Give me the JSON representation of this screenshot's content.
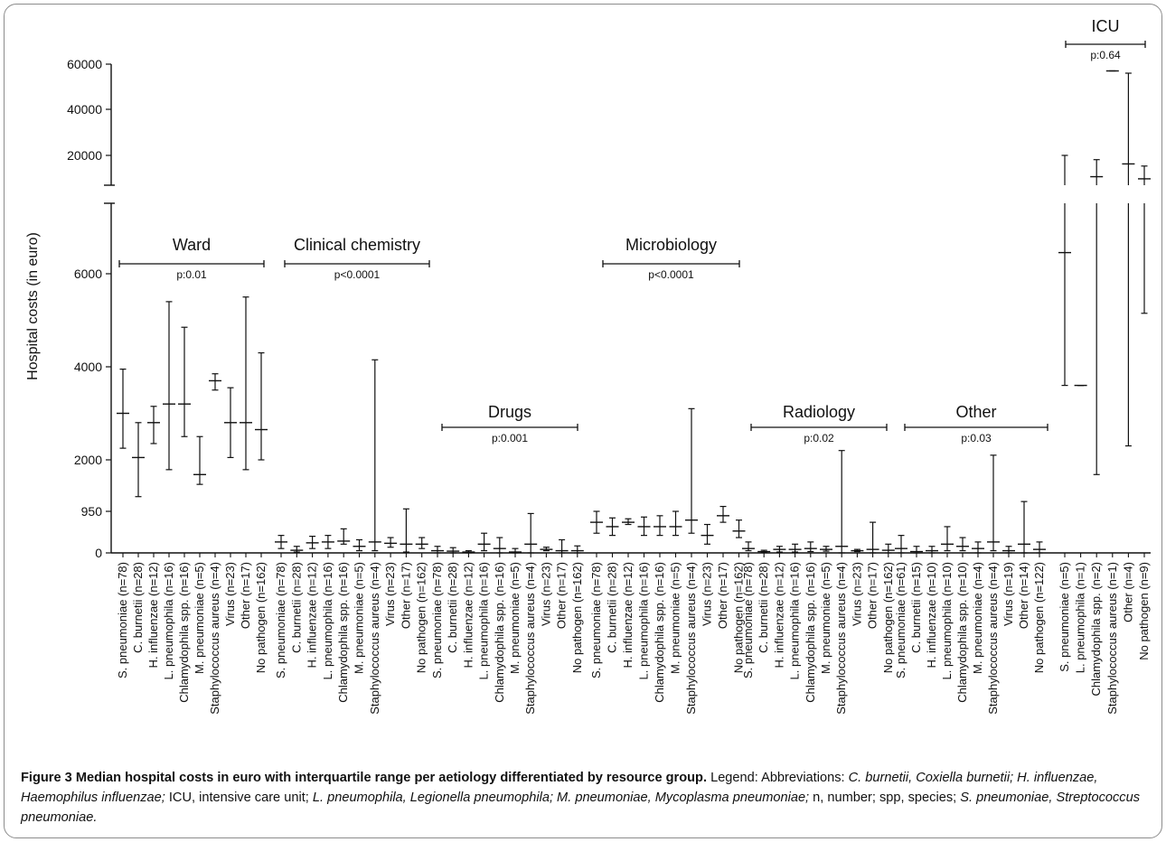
{
  "chart_data": {
    "type": "box",
    "ylabel": "Hospital costs (in euro)",
    "y_tick_labels": [
      "0",
      "950",
      "2000",
      "4000",
      "6000",
      "20000",
      "40000",
      "60000"
    ],
    "groups": [
      {
        "name": "Ward",
        "p_value": "p:0.01",
        "items": [
          {
            "label": "S. pneumoniae (n=78)",
            "median": 3000,
            "q1": 2250,
            "q3": 3950
          },
          {
            "label": "C. burnetii (n=28)",
            "median": 2050,
            "q1": 1250,
            "q3": 2800
          },
          {
            "label": "H. influenzae (n=12)",
            "median": 2800,
            "q1": 2350,
            "q3": 3150
          },
          {
            "label": "L. pneumophila (n=16)",
            "median": 3200,
            "q1": 1800,
            "q3": 5400
          },
          {
            "label": "Chlamydophila spp. (n=16)",
            "median": 3200,
            "q1": 2500,
            "q3": 4850
          },
          {
            "label": "M. pneumoniae (n=5)",
            "median": 1700,
            "q1": 1500,
            "q3": 2500
          },
          {
            "label": "Staphylococcus aureus (n=4)",
            "median": 3700,
            "q1": 3500,
            "q3": 3850
          },
          {
            "label": "Virus (n=23)",
            "median": 2800,
            "q1": 2050,
            "q3": 3550
          },
          {
            "label": "Other (n=17)",
            "median": 2800,
            "q1": 1800,
            "q3": 5500
          },
          {
            "label": "No pathogen (n=162)",
            "median": 2650,
            "q1": 2000,
            "q3": 4300
          }
        ]
      },
      {
        "name": "Clinical chemistry",
        "p_value": "p<0.0001",
        "items": [
          {
            "label": "S. pneumoniae (n=78)",
            "median": 250,
            "q1": 100,
            "q3": 400
          },
          {
            "label": "C. burnetii (n=28)",
            "median": 60,
            "q1": 20,
            "q3": 150
          },
          {
            "label": "H. influenzae (n=12)",
            "median": 230,
            "q1": 100,
            "q3": 380
          },
          {
            "label": "L. pneumophila (n=16)",
            "median": 250,
            "q1": 100,
            "q3": 400
          },
          {
            "label": "Chlamydophila spp. (n=16)",
            "median": 270,
            "q1": 200,
            "q3": 550
          },
          {
            "label": "M. pneumoniae (n=5)",
            "median": 150,
            "q1": 50,
            "q3": 300
          },
          {
            "label": "Staphylococcus aureus (n=4)",
            "median": 250,
            "q1": 50,
            "q3": 4150
          },
          {
            "label": "Virus (n=23)",
            "median": 220,
            "q1": 130,
            "q3": 350
          },
          {
            "label": "Other (n=17)",
            "median": 200,
            "q1": 20,
            "q3": 1000
          },
          {
            "label": "No pathogen (n=162)",
            "median": 200,
            "q1": 100,
            "q3": 350
          }
        ]
      },
      {
        "name": "Drugs",
        "p_value": "p:0.001",
        "items": [
          {
            "label": "S. pneumoniae (n=78)",
            "median": 50,
            "q1": 0,
            "q3": 150
          },
          {
            "label": "C. burnetii (n=28)",
            "median": 40,
            "q1": 0,
            "q3": 120
          },
          {
            "label": "H. influenzae (n=12)",
            "median": 20,
            "q1": 0,
            "q3": 50
          },
          {
            "label": "L. pneumophila (n=16)",
            "median": 200,
            "q1": 50,
            "q3": 450
          },
          {
            "label": "Chlamydophila spp. (n=16)",
            "median": 100,
            "q1": 0,
            "q3": 350
          },
          {
            "label": "M. pneumoniae (n=5)",
            "median": 20,
            "q1": 0,
            "q3": 100
          },
          {
            "label": "Staphylococcus aureus (n=4)",
            "median": 200,
            "q1": 0,
            "q3": 900
          },
          {
            "label": "Virus (n=23)",
            "median": 80,
            "q1": 50,
            "q3": 130
          },
          {
            "label": "Other (n=17)",
            "median": 50,
            "q1": 0,
            "q3": 300
          },
          {
            "label": "No pathogen (n=162)",
            "median": 50,
            "q1": 0,
            "q3": 160
          }
        ]
      },
      {
        "name": "Microbiology",
        "p_value": "p<0.0001",
        "items": [
          {
            "label": "S. pneumoniae (n=78)",
            "median": 700,
            "q1": 450,
            "q3": 950
          },
          {
            "label": "C. burnetii (n=28)",
            "median": 600,
            "q1": 400,
            "q3": 800
          },
          {
            "label": "H. influenzae (n=12)",
            "median": 700,
            "q1": 650,
            "q3": 780
          },
          {
            "label": "L. pneumophila (n=16)",
            "median": 600,
            "q1": 400,
            "q3": 820
          },
          {
            "label": "Chlamydophila spp. (n=16)",
            "median": 600,
            "q1": 400,
            "q3": 850
          },
          {
            "label": "M. pneumoniae (n=5)",
            "median": 600,
            "q1": 400,
            "q3": 950
          },
          {
            "label": "Staphylococcus aureus (n=4)",
            "median": 750,
            "q1": 450,
            "q3": 3100
          },
          {
            "label": "Virus (n=23)",
            "median": 400,
            "q1": 200,
            "q3": 650
          },
          {
            "label": "Other (n=17)",
            "median": 850,
            "q1": 700,
            "q3": 1050
          },
          {
            "label": "No pathogen (n=162)",
            "median": 500,
            "q1": 350,
            "q3": 750
          }
        ]
      },
      {
        "name": "Radiology",
        "p_value": "p:0.02",
        "items": [
          {
            "label": "S. pneumoniae (n=78)",
            "median": 100,
            "q1": 50,
            "q3": 250
          },
          {
            "label": "C. burnetii (n=28)",
            "median": 30,
            "q1": 10,
            "q3": 60
          },
          {
            "label": "H. influenzae (n=12)",
            "median": 80,
            "q1": 20,
            "q3": 150
          },
          {
            "label": "L. pneumophila (n=16)",
            "median": 80,
            "q1": 20,
            "q3": 200
          },
          {
            "label": "Chlamydophila spp. (n=16)",
            "median": 100,
            "q1": 30,
            "q3": 250
          },
          {
            "label": "M. pneumoniae (n=5)",
            "median": 80,
            "q1": 40,
            "q3": 150
          },
          {
            "label": "Staphylococcus aureus (n=4)",
            "median": 150,
            "q1": 0,
            "q3": 2200
          },
          {
            "label": "Virus (n=23)",
            "median": 50,
            "q1": 30,
            "q3": 80
          },
          {
            "label": "Other (n=17)",
            "median": 80,
            "q1": 0,
            "q3": 700
          },
          {
            "label": "No pathogen (n=162)",
            "median": 60,
            "q1": 0,
            "q3": 200
          }
        ]
      },
      {
        "name": "Other",
        "p_value": "p:0.03",
        "items": [
          {
            "label": "S. pneumoniae (n=61)",
            "median": 100,
            "q1": 0,
            "q3": 400
          },
          {
            "label": "C. burnetii (n=15)",
            "median": 30,
            "q1": 0,
            "q3": 150
          },
          {
            "label": "H. influenzae (n=10)",
            "median": 50,
            "q1": 0,
            "q3": 150
          },
          {
            "label": "L. pneumophila (n=10)",
            "median": 200,
            "q1": 50,
            "q3": 600
          },
          {
            "label": "Chlamydophila spp. (n=10)",
            "median": 150,
            "q1": 50,
            "q3": 350
          },
          {
            "label": "M. pneumoniae (n=4)",
            "median": 100,
            "q1": 0,
            "q3": 250
          },
          {
            "label": "Staphylococcus aureus (n=4)",
            "median": 250,
            "q1": 50,
            "q3": 2100
          },
          {
            "label": "Virus (n=19)",
            "median": 50,
            "q1": 0,
            "q3": 150
          },
          {
            "label": "Other (n=14)",
            "median": 200,
            "q1": 0,
            "q3": 1150
          },
          {
            "label": "No pathogen (n=122)",
            "median": 80,
            "q1": 0,
            "q3": 250
          }
        ]
      },
      {
        "name": "ICU",
        "p_value": "p:0.64",
        "items": [
          {
            "label": "S. pneumoniae (n=5)",
            "median": 6600,
            "q1": 3600,
            "q3": 20000
          },
          {
            "label": "L. pneumophila (n=1)",
            "median": 3600,
            "q1": 3600,
            "q3": 3600
          },
          {
            "label": "Chlamydophila spp. (n=2)",
            "median": 10000,
            "q1": 1700,
            "q3": 18000
          },
          {
            "label": "Staphylococcus aureus (n=1)",
            "median": 57000,
            "q1": 57000,
            "q3": 57000
          },
          {
            "label": "Other (n=4)",
            "median": 16000,
            "q1": 2300,
            "q3": 56000
          },
          {
            "label": "No pathogen (n=9)",
            "median": 9000,
            "q1": 5150,
            "q3": 15000
          }
        ]
      }
    ]
  },
  "caption": {
    "title": "Figure 3 Median hospital costs in euro with interquartile range per aetiology differentiated by resource group.",
    "legend_prefix": "Legend: Abbreviations: ",
    "abbr1_term": "C. burnetii, Coxiella burnetii; H. influenzae, Haemophilus influenzae;",
    "abbr2": " ICU, intensive care unit; ",
    "abbr3_term": "L. pneumophila, Legionella pneumophila; M. pneumoniae, Mycoplasma pneumoniae;",
    "abbr4": " n, number; spp, species; ",
    "abbr5_term": "S. pneumoniae, Streptococcus pneumoniae."
  }
}
